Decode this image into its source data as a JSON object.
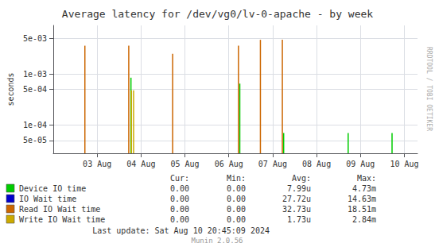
{
  "chart_data": {
    "type": "bar",
    "title": "Average latency for /dev/vg0/lv-0-apache - by week",
    "ylabel": "seconds",
    "log": "y",
    "grid": true,
    "xlim": [
      0.0,
      8.3
    ],
    "xticks": [
      {
        "value": 1.0,
        "label": "03 Aug"
      },
      {
        "value": 2.0,
        "label": "04 Aug"
      },
      {
        "value": 3.0,
        "label": "05 Aug"
      },
      {
        "value": 4.0,
        "label": "06 Aug"
      },
      {
        "value": 5.0,
        "label": "07 Aug"
      },
      {
        "value": 6.0,
        "label": "08 Aug"
      },
      {
        "value": 7.0,
        "label": "09 Aug"
      },
      {
        "value": 8.0,
        "label": "10 Aug"
      }
    ],
    "ylim": [
      2.8e-05,
      0.009
    ],
    "yticks": [
      {
        "value": 5e-05,
        "label": "5e-05"
      },
      {
        "value": 0.0001,
        "label": "1e-04"
      },
      {
        "value": 0.0005,
        "label": "5e-04"
      },
      {
        "value": 0.001,
        "label": "1e-03"
      },
      {
        "value": 0.005,
        "label": "5e-03"
      }
    ],
    "series": [
      {
        "name": "Device IO time",
        "color": "#00cc00",
        "x": [
          1.77,
          4.25,
          5.25,
          6.72,
          7.72
        ],
        "values": [
          0.00085,
          0.00065,
          7e-05,
          7e-05,
          7e-05
        ]
      },
      {
        "name": "IO Wait time",
        "color": "#0000cc",
        "x": [],
        "values": []
      },
      {
        "name": "Read IO Wait time",
        "color": "#cc6600",
        "x": [
          0.72,
          1.72,
          2.72,
          4.22,
          4.72,
          5.22
        ],
        "values": [
          0.0036,
          0.0036,
          0.0025,
          0.0036,
          0.0047,
          0.0047
        ]
      },
      {
        "name": "Write IO Wait time",
        "color": "#ccaa00",
        "x": [
          1.78,
          1.83
        ],
        "values": [
          0.00048,
          0.00048
        ]
      }
    ],
    "table": {
      "headers": [
        "Cur:",
        "Min:",
        "Avg:",
        "Max:"
      ],
      "rows": [
        [
          "0.00",
          "0.00",
          "7.99u",
          "4.73m"
        ],
        [
          "0.00",
          "0.00",
          "27.72u",
          "14.63m"
        ],
        [
          "0.00",
          "0.00",
          "32.73u",
          "18.51m"
        ],
        [
          "0.00",
          "0.00",
          "1.73u",
          "2.84m"
        ]
      ]
    },
    "annotations": [
      "Last update: Sat Aug 10 20:45:09 2024",
      "Munin 2.0.56",
      "RRDTOOL / TOBI OETIKER"
    ]
  }
}
